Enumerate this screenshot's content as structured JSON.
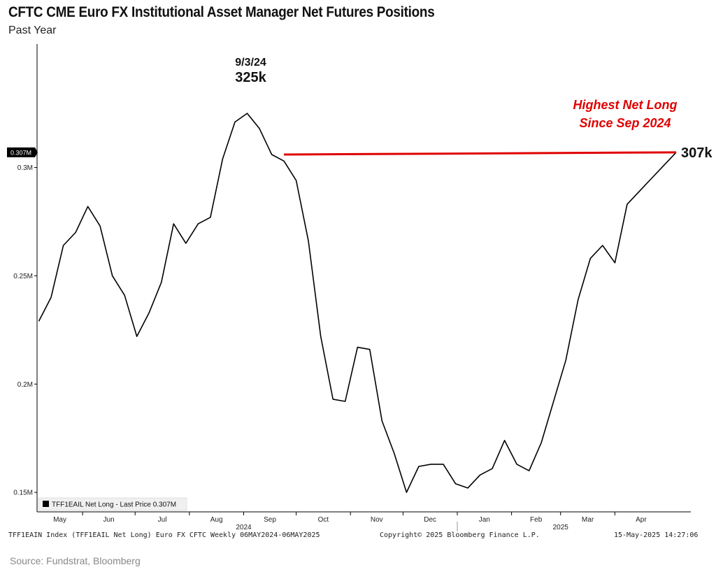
{
  "header": {
    "title": "CFTC CME Euro FX Institutional Asset Manager Net Futures Positions",
    "subtitle": "Past Year"
  },
  "chart_data": {
    "type": "line",
    "x_axis": {
      "month_labels": [
        "May",
        "Jun",
        "Jul",
        "Aug",
        "Sep",
        "Oct",
        "Nov",
        "Dec",
        "Jan",
        "Feb",
        "Mar",
        "Apr"
      ],
      "year_labels": [
        "2024",
        "2025"
      ],
      "range": [
        "2024-05-06",
        "2025-05-06"
      ]
    },
    "y_axis": {
      "tick_labels": [
        "0.15M",
        "0.2M",
        "0.25M",
        "0.3M"
      ],
      "ticks": [
        150000,
        200000,
        250000,
        300000
      ],
      "ylim": [
        141000,
        357000
      ]
    },
    "series": [
      {
        "name": "TFF1EAIL Net Long",
        "color": "#000000",
        "x": [
          "2024-05-07",
          "2024-05-14",
          "2024-05-21",
          "2024-05-28",
          "2024-06-04",
          "2024-06-11",
          "2024-06-18",
          "2024-06-25",
          "2024-07-02",
          "2024-07-09",
          "2024-07-16",
          "2024-07-23",
          "2024-07-30",
          "2024-08-06",
          "2024-08-13",
          "2024-08-20",
          "2024-08-27",
          "2024-09-03",
          "2024-09-10",
          "2024-09-17",
          "2024-09-24",
          "2024-10-01",
          "2024-10-08",
          "2024-10-15",
          "2024-10-22",
          "2024-10-29",
          "2024-11-05",
          "2024-11-12",
          "2024-11-19",
          "2024-11-26",
          "2024-12-03",
          "2024-12-10",
          "2024-12-17",
          "2024-12-24",
          "2024-12-31",
          "2025-01-07",
          "2025-01-14",
          "2025-01-21",
          "2025-01-28",
          "2025-02-04",
          "2025-02-11",
          "2025-02-18",
          "2025-02-25",
          "2025-03-04",
          "2025-03-11",
          "2025-03-18",
          "2025-03-25",
          "2025-04-01",
          "2025-04-08",
          "2025-04-15",
          "2025-04-22",
          "2025-04-29",
          "2025-05-06"
        ],
        "y": [
          229000,
          240000,
          264000,
          270000,
          282000,
          273000,
          250000,
          241000,
          222000,
          233000,
          247000,
          274000,
          265000,
          274000,
          277000,
          304000,
          321000,
          325000,
          318000,
          306000,
          303000,
          294000,
          266000,
          222000,
          193000,
          192000,
          217000,
          216000,
          183000,
          168000,
          150000,
          162000,
          163000,
          163000,
          154000,
          152000,
          158000,
          161000,
          174000,
          163000,
          160000,
          173000,
          192000,
          211000,
          239000,
          258000,
          264000,
          256000,
          283000,
          289000,
          295000,
          301000,
          307000
        ]
      }
    ],
    "last_price": "0.307M",
    "legend": {
      "text": "TFF1EAIL Net Long - Last Price 0.307M",
      "placement": "bottom-left"
    },
    "annotations": {
      "peak_date": "9/3/24",
      "peak_value": "325k",
      "end_value": "307k",
      "callout_line1": "Highest Net Long",
      "callout_line2": "Since Sep 2024",
      "callout_color": "#e00000",
      "reference_line": {
        "from_x": "2024-09-24",
        "to_x": "2025-05-06",
        "from_y": 306000,
        "to_y": 307000
      }
    },
    "grid": false
  },
  "footer": {
    "left": "TFF1EAIN Index (TFF1EAIL Net Long) Euro FX CFTC  Weekly 06MAY2024-06MAY2025",
    "center": "Copyright© 2025 Bloomberg Finance L.P.",
    "right": "15-May-2025 14:27:06"
  },
  "source": "Source: Fundstrat, Bloomberg"
}
